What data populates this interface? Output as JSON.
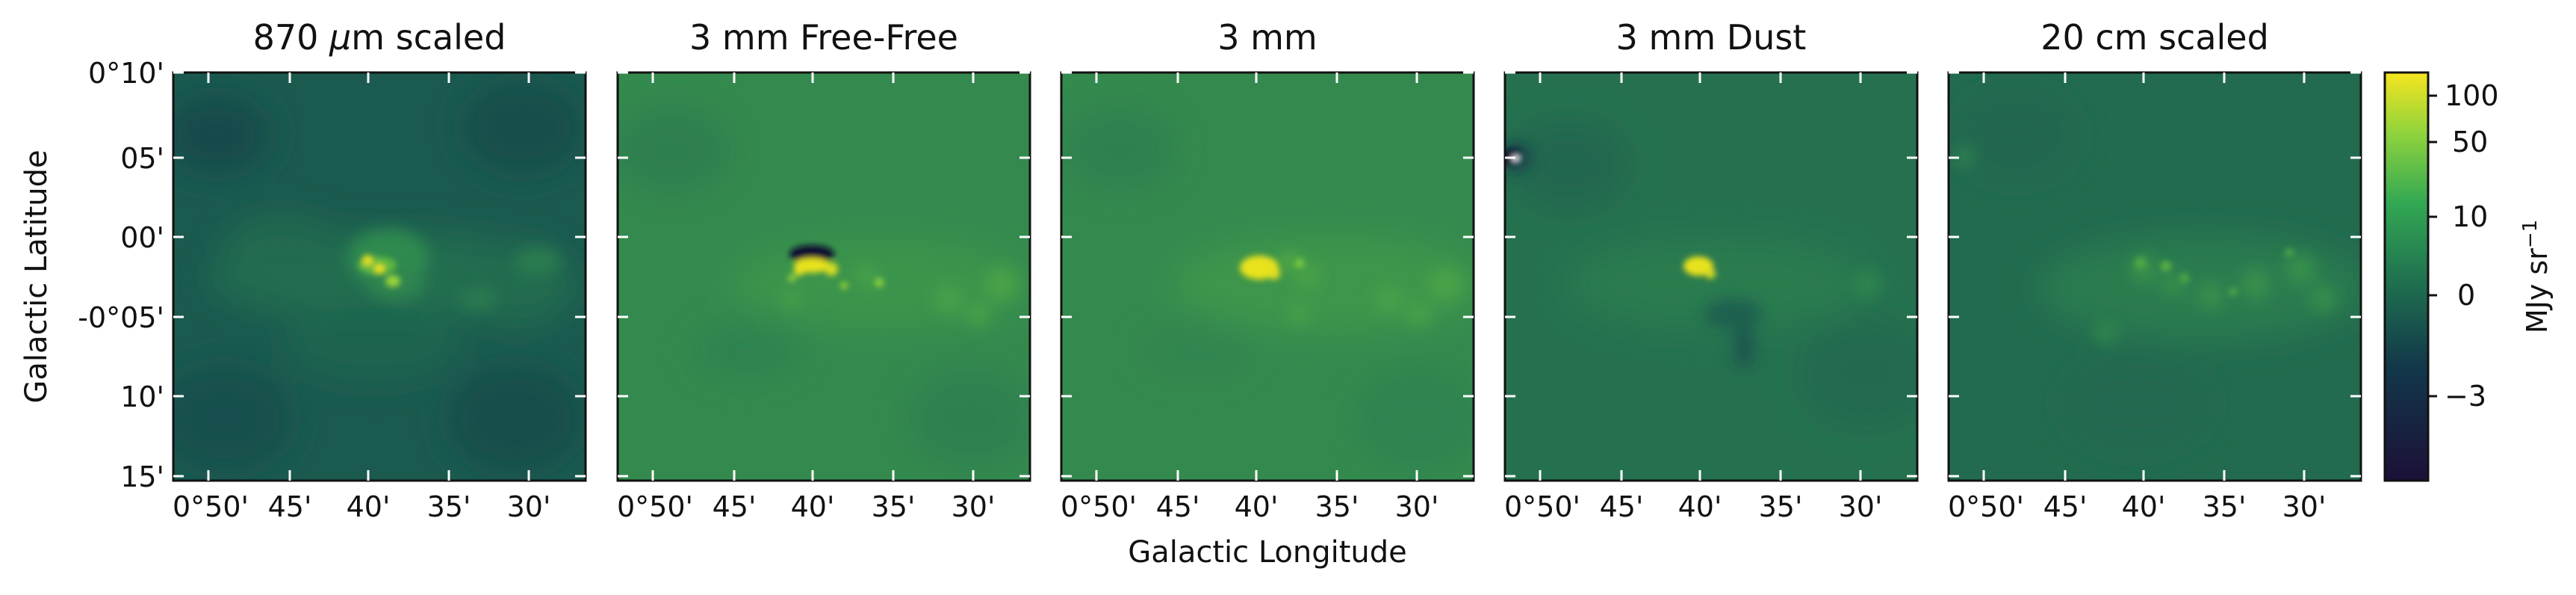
{
  "figure": {
    "x_axis_label": "Galactic Longitude",
    "y_axis_label": "Galactic Latitude",
    "x_tick_labels": [
      "0°50'",
      "45'",
      "40'",
      "35'",
      "30'"
    ],
    "y_tick_labels": [
      "0°10'",
      "05'",
      "00'",
      "-0°05'",
      "10'",
      "15'"
    ]
  },
  "panels": [
    {
      "title_pre": "870 ",
      "title_mu": "μ",
      "title_post": "m scaled"
    },
    {
      "title": "3 mm Free-Free"
    },
    {
      "title": "3 mm"
    },
    {
      "title": "3 mm Dust"
    },
    {
      "title": "20 cm scaled"
    }
  ],
  "colorbar": {
    "unit_main": "MJy sr",
    "unit_sup": "−1",
    "tick_labels": [
      "100",
      "50",
      "10",
      "0",
      "−3"
    ],
    "colormap_stops": [
      "#f5e51f",
      "#8fd33d",
      "#32a853",
      "#1f6e4f",
      "#12384a",
      "#1c1038"
    ]
  },
  "colors": {
    "background_green": "#1f6e4f",
    "emission_green": "#3fa046",
    "peak_yellow": "#f5e51f",
    "negative_dark": "#0d1033"
  }
}
